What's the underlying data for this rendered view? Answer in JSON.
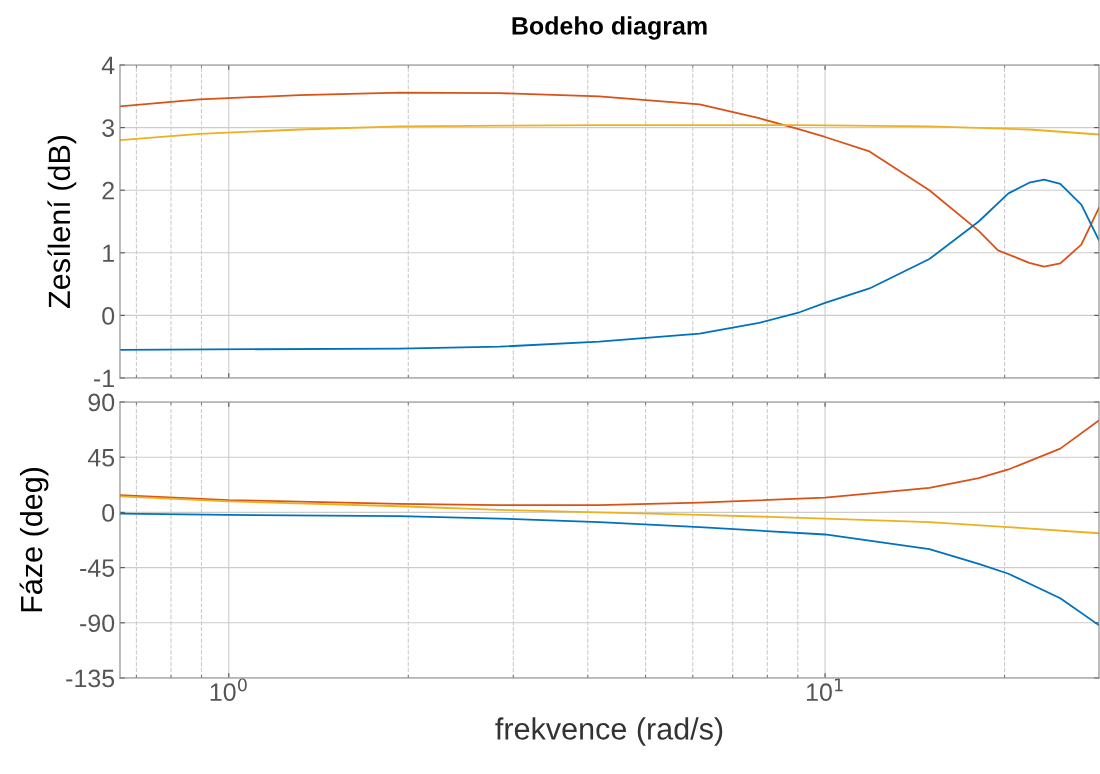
{
  "chart_data": [
    {
      "type": "line",
      "title": "Bodeho diagram",
      "ylabel": "Zesílení (dB)",
      "log": "x",
      "grid": true,
      "tick_labels": "y",
      "xlim": [
        0.657,
        28.8
      ],
      "ylim": [
        -1,
        4
      ],
      "yticks": [
        -1,
        0,
        1,
        2,
        3,
        4
      ],
      "series": [
        {
          "color": "#d95319",
          "x": [
            0.657,
            0.894,
            1.315,
            1.934,
            2.845,
            4.18,
            6.16,
            7.75,
            9.06,
            10,
            11.87,
            14.96,
            18.1,
            19.5,
            22.0,
            23.3,
            24.8,
            26.9,
            28.8
          ],
          "values": [
            3.34,
            3.45,
            3.52,
            3.56,
            3.55,
            3.5,
            3.37,
            3.15,
            2.97,
            2.85,
            2.62,
            2.0,
            1.35,
            1.04,
            0.84,
            0.78,
            0.83,
            1.13,
            1.72
          ]
        },
        {
          "color": "#edb120",
          "x": [
            0.657,
            0.894,
            1.315,
            1.934,
            4.18,
            9.06,
            14.96,
            22.0,
            28.8
          ],
          "values": [
            2.8,
            2.9,
            2.97,
            3.02,
            3.04,
            3.04,
            3.02,
            2.97,
            2.89
          ]
        },
        {
          "color": "#0072bd",
          "x": [
            0.657,
            1.934,
            2.845,
            4.18,
            6.16,
            7.75,
            9.06,
            10,
            11.87,
            14.96,
            18.1,
            20.3,
            22.0,
            23.3,
            24.8,
            26.9,
            28.8
          ],
          "values": [
            -0.55,
            -0.53,
            -0.5,
            -0.42,
            -0.29,
            -0.12,
            0.05,
            0.2,
            0.43,
            0.9,
            1.5,
            1.95,
            2.12,
            2.17,
            2.1,
            1.77,
            1.2
          ]
        }
      ]
    },
    {
      "type": "line",
      "ylabel": "Fáze (deg)",
      "xlabel": "frekvence (rad/s)",
      "log": "x",
      "grid": true,
      "xlim": [
        0.657,
        28.8
      ],
      "xticks": [
        {
          "value": 1,
          "label": "10$^{0}$"
        },
        {
          "value": 10,
          "label": "10$^{1}$"
        }
      ],
      "ylim": [
        -135,
        90
      ],
      "yticks": [
        -135,
        -90,
        -45,
        0,
        45,
        90
      ],
      "series": [
        {
          "color": "#d95319",
          "x": [
            0.657,
            1,
            1.934,
            2.845,
            4.18,
            6.16,
            10,
            14.96,
            18.1,
            20.3,
            24.8,
            28.8
          ],
          "values": [
            14,
            10,
            7,
            6,
            6,
            8,
            12,
            20,
            28,
            35,
            52,
            75
          ]
        },
        {
          "color": "#edb120",
          "x": [
            0.657,
            1,
            1.934,
            2.845,
            4.18,
            6.16,
            10,
            14.96,
            20.3,
            28.8
          ],
          "values": [
            13,
            9,
            5,
            2,
            0,
            -2,
            -5,
            -8,
            -12,
            -17
          ]
        },
        {
          "color": "#0072bd",
          "x": [
            0.657,
            1,
            1.934,
            2.845,
            4.18,
            6.16,
            10,
            14.96,
            18.1,
            20.3,
            24.8,
            28.8
          ],
          "values": [
            -1,
            -2,
            -3,
            -5,
            -8,
            -12,
            -18,
            -30,
            -42,
            -50,
            -70,
            -92
          ]
        }
      ]
    }
  ]
}
